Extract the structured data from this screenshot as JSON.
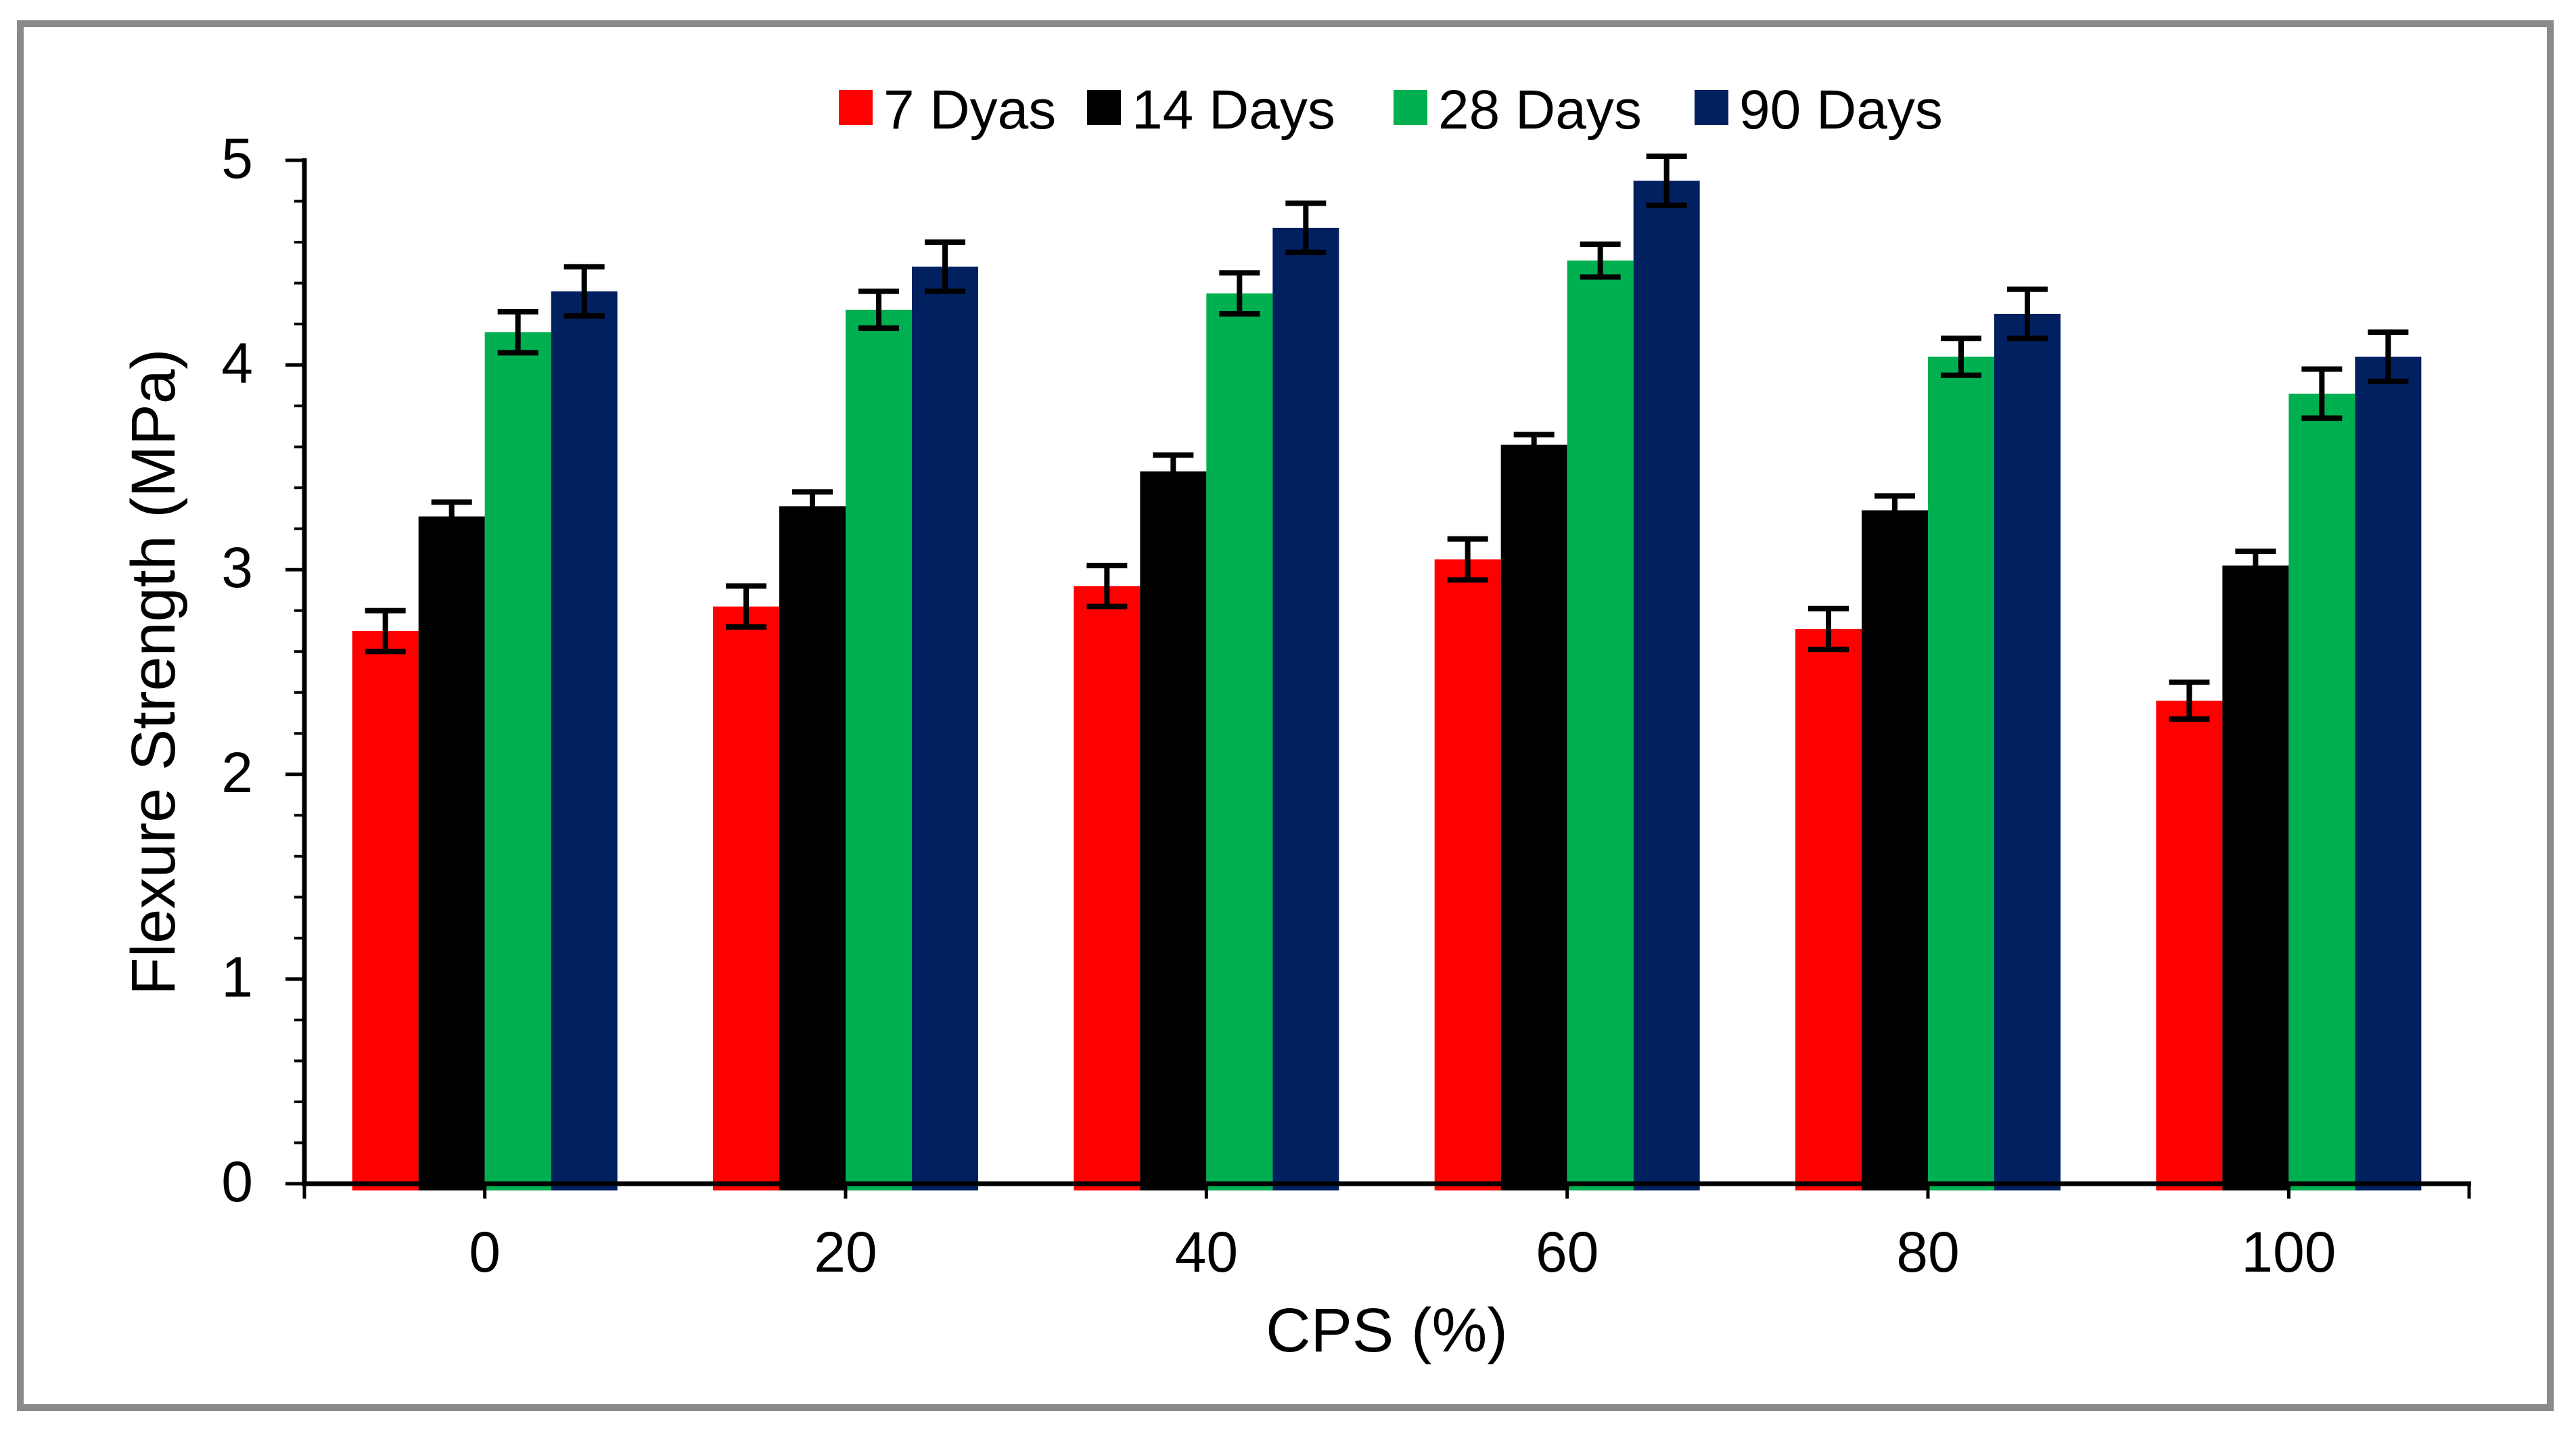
{
  "chart_data": {
    "type": "bar",
    "title": "",
    "xlabel": "CPS (%)",
    "ylabel": "Flexure Strength (MPa)",
    "categories": [
      "0",
      "20",
      "40",
      "60",
      "80",
      "100"
    ],
    "y_ticks": [
      "0",
      "1",
      "2",
      "3",
      "4",
      "5"
    ],
    "ylim": [
      0,
      5
    ],
    "y_major_step": 1,
    "y_minor_step": 0.2,
    "grid": "off",
    "legend_position": "top-center",
    "bar_group": "clustered, 4 bars per category, error bars",
    "series": [
      {
        "name": "7 Dyas",
        "color": "#FF0000",
        "values": [
          2.7,
          2.82,
          2.92,
          3.05,
          2.71,
          2.36
        ],
        "errors": [
          0.1,
          0.1,
          0.1,
          0.1,
          0.1,
          0.09
        ]
      },
      {
        "name": "14 Days",
        "color": "#000000",
        "values": [
          3.26,
          3.31,
          3.48,
          3.61,
          3.29,
          3.02
        ],
        "errors": [
          0.07,
          0.07,
          0.08,
          0.05,
          0.07,
          0.07
        ]
      },
      {
        "name": "28 Days",
        "color": "#00B050",
        "values": [
          4.16,
          4.27,
          4.35,
          4.51,
          4.04,
          3.86
        ],
        "errors": [
          0.1,
          0.09,
          0.1,
          0.08,
          0.09,
          0.12
        ]
      },
      {
        "name": "90 Days",
        "color": "#002060",
        "values": [
          4.36,
          4.48,
          4.67,
          4.9,
          4.25,
          4.04
        ],
        "errors": [
          0.12,
          0.12,
          0.12,
          0.12,
          0.12,
          0.12
        ]
      }
    ]
  },
  "frame": {
    "border_color": "#8a8a8a",
    "background": "#ffffff"
  }
}
